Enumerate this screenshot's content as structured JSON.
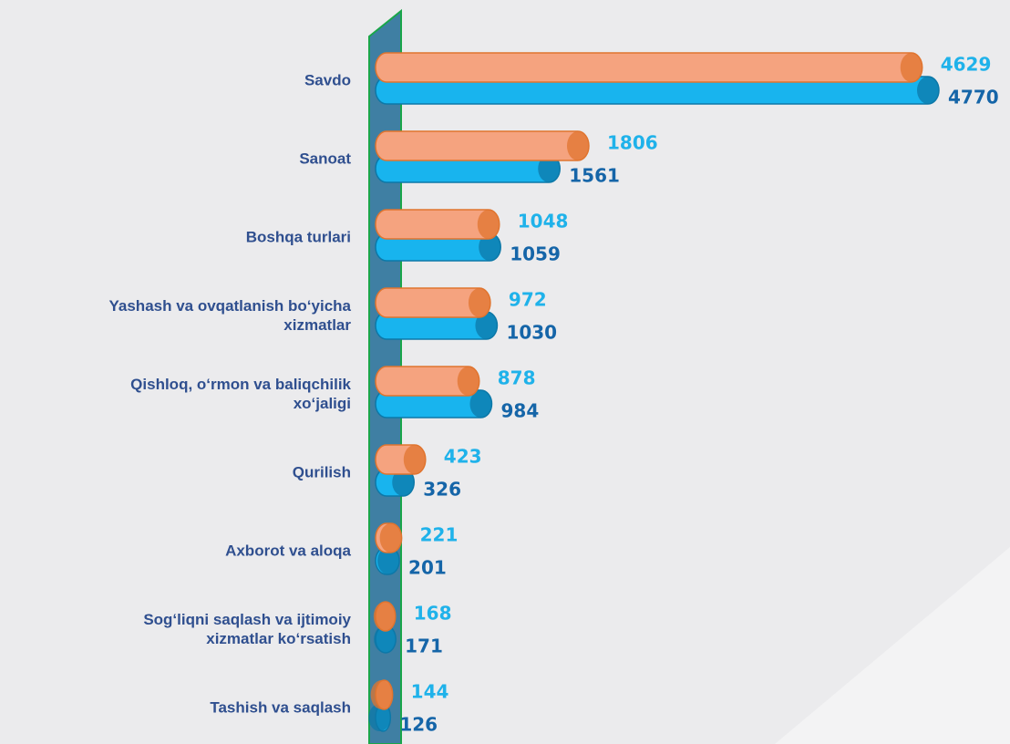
{
  "chart_data": {
    "type": "bar",
    "orientation": "horizontal",
    "categories": [
      "Savdo",
      "Sanoat",
      "Boshqa turlari",
      "Yashash va ovqatlanish bo‘yicha\nxizmatlar",
      "Qishloq, o‘rmon va baliqchilik\nxo‘jaligi",
      "Qurilish",
      "Axborot va aloqa",
      "Sog‘liqni saqlash va ijtimoiy\nxizmatlar ko‘rsatish",
      "Tashish va saqlash"
    ],
    "series": [
      {
        "color": "#f5a37f",
        "label_color": "#1fb2ea",
        "values": [
          4629,
          1806,
          1048,
          972,
          878,
          423,
          221,
          168,
          144
        ]
      },
      {
        "color": "#18b4ee",
        "label_color": "#1565a8",
        "values": [
          4770,
          1561,
          1059,
          1030,
          984,
          326,
          201,
          171,
          126
        ]
      }
    ]
  }
}
